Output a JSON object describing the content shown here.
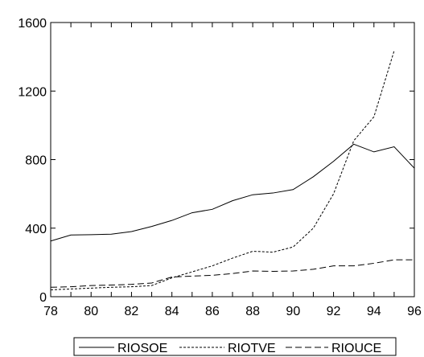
{
  "chart_data": {
    "type": "line",
    "title": "",
    "xlabel": "",
    "ylabel": "",
    "x": [
      78,
      79,
      80,
      81,
      82,
      83,
      84,
      85,
      86,
      87,
      88,
      89,
      90,
      91,
      92,
      93,
      94,
      95,
      96
    ],
    "xlim": [
      78,
      96
    ],
    "ylim": [
      0,
      1600
    ],
    "x_ticks": [
      "78",
      "80",
      "82",
      "84",
      "86",
      "88",
      "90",
      "92",
      "94",
      "96"
    ],
    "y_ticks": [
      "0",
      "400",
      "800",
      "1200",
      "1600"
    ],
    "grid": false,
    "legend_position": "bottom",
    "series": [
      {
        "name": "RIOSOE",
        "dash": "solid",
        "values": [
          325,
          360,
          362,
          365,
          380,
          410,
          445,
          490,
          510,
          560,
          595,
          605,
          625,
          700,
          790,
          890,
          845,
          875,
          750
        ]
      },
      {
        "name": "RIOTVE",
        "dash": "short-dash",
        "values": [
          40,
          45,
          50,
          55,
          58,
          65,
          110,
          145,
          180,
          225,
          265,
          260,
          290,
          400,
          600,
          910,
          1050,
          1435,
          null
        ]
      },
      {
        "name": "RIOUCE",
        "dash": "long-dash",
        "values": [
          55,
          58,
          65,
          68,
          72,
          80,
          115,
          120,
          125,
          135,
          150,
          148,
          150,
          160,
          180,
          180,
          195,
          215,
          215
        ]
      }
    ]
  }
}
